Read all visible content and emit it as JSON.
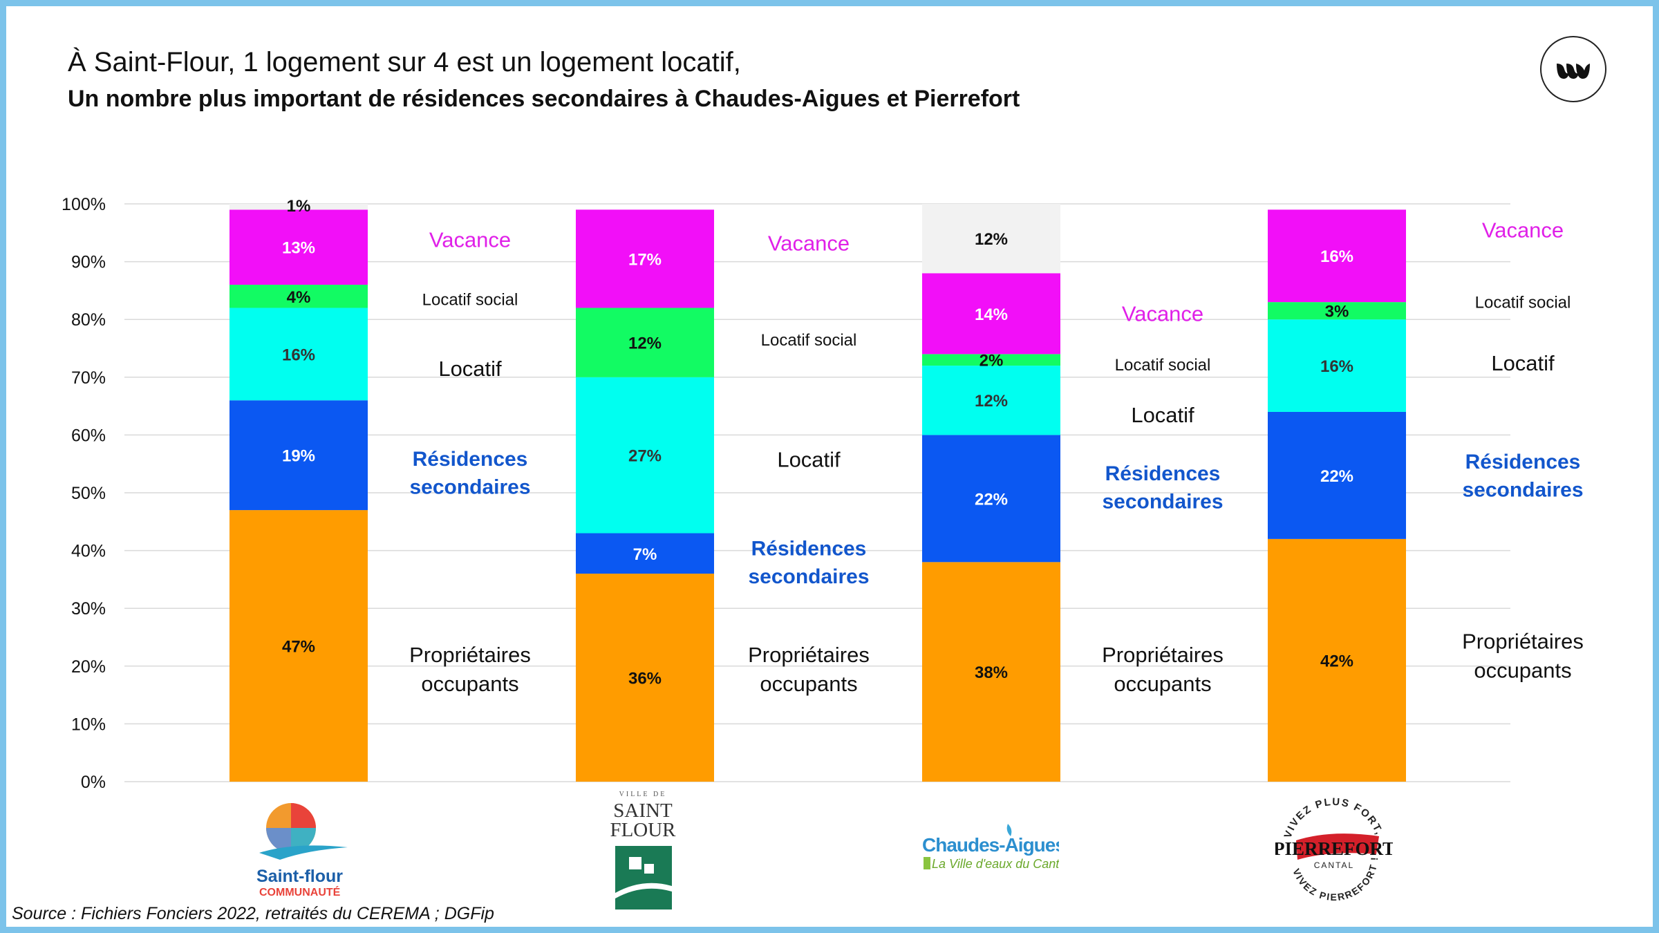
{
  "title": "À Saint-Flour, 1 logement sur 4 est un logement locatif,",
  "subtitle": "Un nombre plus important de résidences secondaires à Chaudes-Aigues et Pierrefort",
  "source": "Source : Fichiers Fonciers 2022, retraités du CEREMA ; DGFip",
  "colors": {
    "proprietaires": "#ff9c00",
    "residences": "#0b58f2",
    "locatif": "#00fff0",
    "social": "#12fb63",
    "vacance": "#f20ff8",
    "autre": "#f2f2f2",
    "label_blue": "#1256cc",
    "label_magenta": "#e020e8",
    "grid": "#d9d9d9"
  },
  "logos": {
    "saintflour_communaute": {
      "line1": "Saint-flour",
      "line2": "COMMUNAUTÉ"
    },
    "ville_saint_flour": {
      "top": "VILLE DE",
      "line1": "SAINT",
      "line2": "FLOUR"
    },
    "chaudes_aigues": {
      "line1": "Chaudes-Aigues",
      "line2": "La Ville d'eaux du Cantal"
    },
    "pierrefort": {
      "arc_top": "VIVEZ PLUS FORT,",
      "name": "PIERREFORT",
      "sub": "CANTAL",
      "arc_bottom": "VIVEZ PIERREFORT !"
    }
  },
  "chart_data": {
    "type": "bar",
    "stacked": true,
    "categories": [
      "Saint-Flour Communauté",
      "Saint-Flour",
      "Chaudes-Aigues",
      "Pierrefort"
    ],
    "y_ticks": [
      "0%",
      "10%",
      "20%",
      "30%",
      "40%",
      "50%",
      "60%",
      "70%",
      "80%",
      "90%",
      "100%"
    ],
    "ylim": [
      0,
      100
    ],
    "grid": true,
    "series": [
      {
        "key": "proprietaires",
        "values": [
          47,
          36,
          38,
          42
        ],
        "labels": [
          "47%",
          "36%",
          "38%",
          "42%"
        ]
      },
      {
        "key": "residences",
        "values": [
          19,
          7,
          22,
          22
        ],
        "labels": [
          "19%",
          "7%",
          "22%",
          "22%"
        ]
      },
      {
        "key": "locatif",
        "values": [
          16,
          27,
          12,
          16
        ],
        "labels": [
          "16%",
          "27%",
          "12%",
          "16%"
        ]
      },
      {
        "key": "social",
        "values": [
          4,
          12,
          2,
          3
        ],
        "labels": [
          "4%",
          "12%",
          "2%",
          "3%"
        ]
      },
      {
        "key": "vacance",
        "values": [
          13,
          17,
          14,
          16
        ],
        "labels": [
          "13%",
          "17%",
          "14%",
          "16%"
        ]
      },
      {
        "key": "autre",
        "values": [
          1,
          0,
          12,
          0
        ],
        "labels": [
          "1%",
          "",
          "12%",
          ""
        ]
      }
    ],
    "side_labels": [
      [
        {
          "series": "vacance",
          "y": 93.8,
          "text": [
            "Vacance"
          ]
        },
        {
          "series": "social",
          "y": 83.5,
          "text": [
            "Locatif social"
          ]
        },
        {
          "series": "locatif",
          "y": 71.5,
          "text": [
            "Locatif"
          ]
        },
        {
          "series": "residences",
          "y": 53.5,
          "text": [
            "Résidences",
            "secondaires"
          ]
        },
        {
          "series": "proprietaires",
          "y": 19.5,
          "text": [
            "Propriétaires",
            "occupants"
          ]
        }
      ],
      [
        {
          "series": "vacance",
          "y": 93.2,
          "text": [
            "Vacance"
          ]
        },
        {
          "series": "social",
          "y": 76.5,
          "text": [
            "Locatif social"
          ]
        },
        {
          "series": "locatif",
          "y": 55.8,
          "text": [
            "Locatif"
          ]
        },
        {
          "series": "residences",
          "y": 38.0,
          "text": [
            "Résidences",
            "secondaires"
          ]
        },
        {
          "series": "proprietaires",
          "y": 19.5,
          "text": [
            "Propriétaires",
            "occupants"
          ]
        }
      ],
      [
        {
          "series": "vacance",
          "y": 81.0,
          "text": [
            "Vacance"
          ]
        },
        {
          "series": "social",
          "y": 72.2,
          "text": [
            "Locatif social"
          ]
        },
        {
          "series": "locatif",
          "y": 63.5,
          "text": [
            "Locatif"
          ]
        },
        {
          "series": "residences",
          "y": 51.0,
          "text": [
            "Résidences",
            "secondaires"
          ]
        },
        {
          "series": "proprietaires",
          "y": 19.5,
          "text": [
            "Propriétaires",
            "occupants"
          ]
        }
      ],
      [
        {
          "series": "vacance",
          "y": 95.5,
          "text": [
            "Vacance"
          ]
        },
        {
          "series": "social",
          "y": 83.0,
          "text": [
            "Locatif social"
          ]
        },
        {
          "series": "locatif",
          "y": 72.5,
          "text": [
            "Locatif"
          ]
        },
        {
          "series": "residences",
          "y": 53.0,
          "text": [
            "Résidences",
            "secondaires"
          ]
        },
        {
          "series": "proprietaires",
          "y": 21.8,
          "text": [
            "Propriétaires",
            "occupants"
          ]
        }
      ]
    ]
  }
}
